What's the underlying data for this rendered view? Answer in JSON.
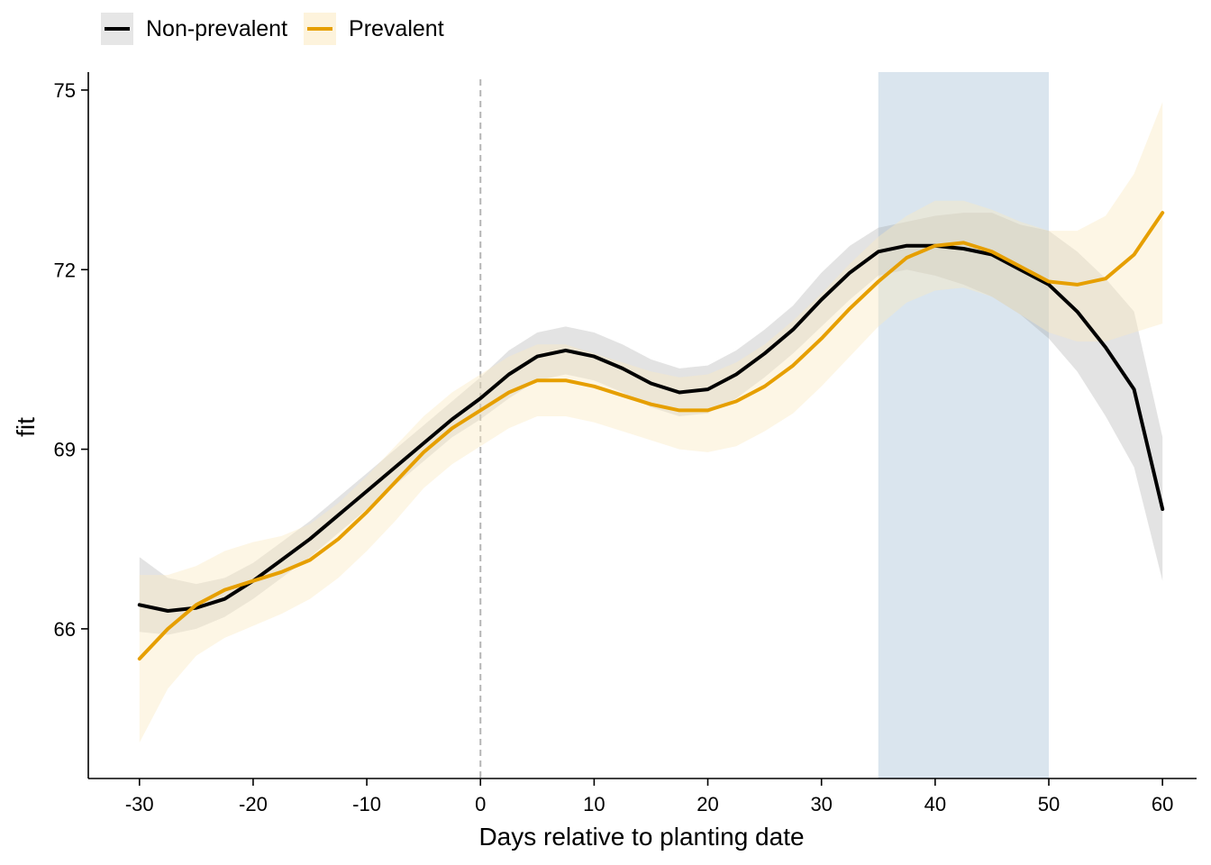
{
  "legend": {
    "items": [
      {
        "label": "Non-prevalent",
        "color": "#000000",
        "band_color": "#b3b3b3"
      },
      {
        "label": "Prevalent",
        "color": "#E69F00",
        "band_color": "#fbe9c0"
      }
    ]
  },
  "chart_data": {
    "type": "line",
    "xlabel": "Days relative to planting date",
    "ylabel": "fit",
    "xlim": [
      -34.5,
      63
    ],
    "ylim": [
      63.5,
      75.3
    ],
    "x_ticks": [
      -30,
      -20,
      -10,
      0,
      10,
      20,
      30,
      40,
      50,
      60
    ],
    "y_ticks": [
      66,
      69,
      72,
      75
    ],
    "reference_line": {
      "x": 0,
      "style": "dashed",
      "color": "#b5b5b5"
    },
    "highlight_region": {
      "x_start": 35,
      "x_end": 50,
      "color": "#dae5ee"
    },
    "grid": false,
    "legend_position": "top-left",
    "series": [
      {
        "name": "Non-prevalent",
        "color": "#000000",
        "band_color": "#9a9a9a",
        "x": [
          -30,
          -27.5,
          -25,
          -22.5,
          -20,
          -17.5,
          -15,
          -12.5,
          -10,
          -7.5,
          -5,
          -2.5,
          0,
          2.5,
          5,
          7.5,
          10,
          12.5,
          15,
          17.5,
          20,
          22.5,
          25,
          27.5,
          30,
          32.5,
          35,
          37.5,
          40,
          42.5,
          45,
          47.5,
          50,
          52.5,
          55,
          57.5,
          60
        ],
        "y": [
          66.4,
          66.3,
          66.35,
          66.5,
          66.8,
          67.15,
          67.5,
          67.9,
          68.3,
          68.7,
          69.1,
          69.5,
          69.85,
          70.25,
          70.55,
          70.65,
          70.55,
          70.35,
          70.1,
          69.95,
          70.0,
          70.25,
          70.6,
          71.0,
          71.5,
          71.95,
          72.3,
          72.4,
          72.4,
          72.35,
          72.25,
          72.0,
          71.75,
          71.3,
          70.7,
          70.0,
          68.0
        ],
        "lower": [
          65.95,
          65.9,
          66.0,
          66.2,
          66.5,
          66.85,
          67.2,
          67.6,
          68.0,
          68.4,
          68.8,
          69.2,
          69.5,
          69.85,
          70.15,
          70.25,
          70.15,
          69.95,
          69.7,
          69.55,
          69.6,
          69.85,
          70.2,
          70.6,
          71.05,
          71.5,
          71.9,
          72.0,
          71.9,
          71.75,
          71.55,
          71.25,
          70.85,
          70.3,
          69.55,
          68.7,
          66.8
        ],
        "upper": [
          67.2,
          66.85,
          66.75,
          66.85,
          67.1,
          67.45,
          67.8,
          68.2,
          68.6,
          69.0,
          69.4,
          69.8,
          70.2,
          70.65,
          70.95,
          71.05,
          70.95,
          70.75,
          70.5,
          70.35,
          70.4,
          70.65,
          71.0,
          71.4,
          71.95,
          72.4,
          72.7,
          72.8,
          72.9,
          72.95,
          72.95,
          72.75,
          72.65,
          72.3,
          71.85,
          71.3,
          69.2
        ]
      },
      {
        "name": "Prevalent",
        "color": "#E69F00",
        "band_color": "#fbe9c0",
        "x": [
          -30,
          -27.5,
          -25,
          -22.5,
          -20,
          -17.5,
          -15,
          -12.5,
          -10,
          -7.5,
          -5,
          -2.5,
          0,
          2.5,
          5,
          7.5,
          10,
          12.5,
          15,
          17.5,
          20,
          22.5,
          25,
          27.5,
          30,
          32.5,
          35,
          37.5,
          40,
          42.5,
          45,
          47.5,
          50,
          52.5,
          55,
          57.5,
          60
        ],
        "y": [
          65.5,
          66.0,
          66.4,
          66.65,
          66.8,
          66.95,
          67.15,
          67.5,
          67.95,
          68.45,
          68.95,
          69.35,
          69.65,
          69.95,
          70.15,
          70.15,
          70.05,
          69.9,
          69.75,
          69.65,
          69.65,
          69.8,
          70.05,
          70.4,
          70.85,
          71.35,
          71.8,
          72.2,
          72.4,
          72.45,
          72.3,
          72.05,
          71.8,
          71.75,
          71.85,
          72.25,
          72.95
        ],
        "lower": [
          64.1,
          65.0,
          65.55,
          65.85,
          66.05,
          66.25,
          66.5,
          66.85,
          67.3,
          67.8,
          68.35,
          68.75,
          69.05,
          69.35,
          69.55,
          69.55,
          69.45,
          69.3,
          69.15,
          69.0,
          68.95,
          69.05,
          69.3,
          69.6,
          70.05,
          70.55,
          71.05,
          71.45,
          71.65,
          71.7,
          71.55,
          71.25,
          70.95,
          70.8,
          70.8,
          70.95,
          71.1
        ],
        "upper": [
          66.9,
          66.9,
          67.05,
          67.3,
          67.45,
          67.55,
          67.75,
          68.1,
          68.55,
          69.05,
          69.55,
          69.95,
          70.25,
          70.55,
          70.75,
          70.75,
          70.6,
          70.45,
          70.3,
          70.2,
          70.25,
          70.45,
          70.75,
          71.15,
          71.6,
          72.1,
          72.55,
          72.9,
          73.15,
          73.15,
          73.0,
          72.8,
          72.65,
          72.65,
          72.9,
          73.6,
          74.8
        ]
      }
    ]
  }
}
